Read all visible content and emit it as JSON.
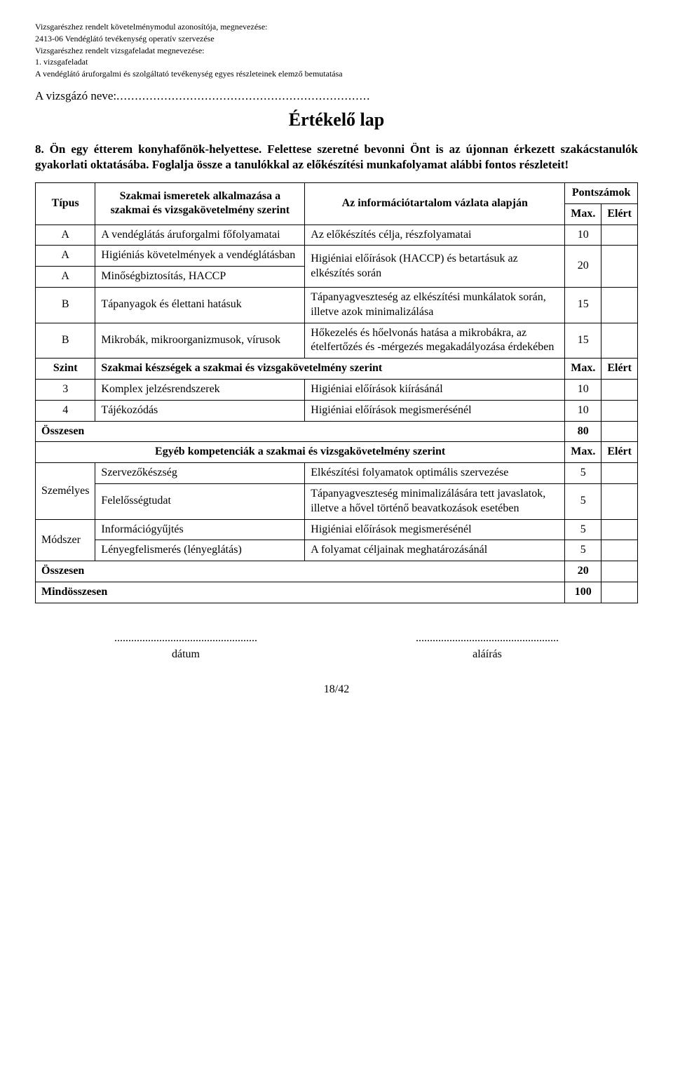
{
  "header": {
    "line1": "Vizsgarészhez rendelt követelménymodul azonosítója, megnevezése:",
    "line2": "2413-06 Vendéglátó tevékenység operatív szervezése",
    "line3": "Vizsgarészhez rendelt vizsgafeladat megnevezése:",
    "line4": "1. vizsgafeladat",
    "line5": "A vendéglátó áruforgalmi és szolgáltató tevékenység egyes részleteinek elemző bemutatása"
  },
  "candidate_label": "A vizsgázó neve:",
  "candidate_dots": ".....................................................................",
  "title": "Értékelő lap",
  "question": "8. Ön egy étterem konyhafőnök-helyettese. Felettese szeretné bevonni Önt is az újonnan érkezett szakácstanulók gyakorlati oktatásába. Foglalja össze a tanulókkal az előkészítési munkafolyamat alábbi fontos részleteit!",
  "cols": {
    "tipus": "Típus",
    "szakmai_header": "Szakmai ismeretek alkalmazása a szakmai és vizsgakövetelmény szerint",
    "info_header": "Az információtartalom vázlata alapján",
    "pontszamok": "Pontszámok",
    "max": "Max.",
    "elert": "Elért"
  },
  "rows_a": [
    {
      "t": "A",
      "left": "A vendéglátás áruforgalmi főfolyamatai",
      "right": "Az előkészítés célja, részfolyamatai",
      "max": "10"
    },
    {
      "t": "A",
      "left": "Higiéniás követelmények a vendéglátásban",
      "right": "Higiéniai előírások (HACCP) és betartásuk az elkészítés során",
      "max": "20"
    },
    {
      "t": "A",
      "left": "Minőségbiztosítás, HACCP"
    },
    {
      "t": "B",
      "left": "Tápanyagok és élettani hatásuk",
      "right": "Tápanyagveszteség az elkészítési munkálatok során, illetve azok minimalizálása",
      "max": "15"
    },
    {
      "t": "B",
      "left": "Mikrobák, mikroorganizmusok, vírusok",
      "right": "Hőkezelés és hőelvonás hatása a mikrobákra, az ételfertőzés és -mérgezés megakadályozása érdekében",
      "max": "15"
    }
  ],
  "szint_row": {
    "szint": "Szint",
    "label": "Szakmai készségek a szakmai és vizsgakövetelmény szerint",
    "max": "Max.",
    "elert": "Elért"
  },
  "rows_szint": [
    {
      "n": "3",
      "left": "Komplex jelzésrendszerek",
      "right": "Higiéniai előírások kiírásánál",
      "max": "10"
    },
    {
      "n": "4",
      "left": "Tájékozódás",
      "right": "Higiéniai előírások megismerésénél",
      "max": "10"
    }
  ],
  "osszesen1": {
    "label": "Összesen",
    "val": "80"
  },
  "egyeb_header": {
    "label": "Egyéb kompetenciák a szakmai és vizsgakövetelmény szerint",
    "max": "Max.",
    "elert": "Elért"
  },
  "rows_szemelyes_label": "Személyes",
  "rows_modszer_label": "Módszer",
  "rows_egyeb": [
    {
      "left": "Szervezőkészség",
      "right": "Elkészítési folyamatok optimális szervezése",
      "max": "5"
    },
    {
      "left": "Felelősségtudat",
      "right": "Tápanyagveszteség minimalizálására tett javaslatok, illetve a hővel történő beavatkozások esetében",
      "max": "5"
    },
    {
      "left": "Információgyűjtés",
      "right": "Higiéniai előírások megismerésénél",
      "max": "5"
    },
    {
      "left": "Lényegfelismerés (lényeglátás)",
      "right": "A folyamat céljainak meghatározásánál",
      "max": "5"
    }
  ],
  "osszesen2": {
    "label": "Összesen",
    "val": "20"
  },
  "mindosszesen": {
    "label": "Mindösszesen",
    "val": "100"
  },
  "sig": {
    "dots": "...................................................",
    "date": "dátum",
    "sign": "aláírás"
  },
  "page": "18/42"
}
